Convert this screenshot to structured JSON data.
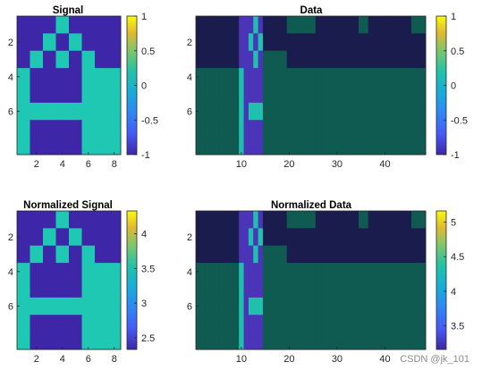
{
  "watermark": "CSDN @jk_101",
  "chart_data": [
    {
      "type": "heatmap",
      "title": "Signal",
      "xlim": [
        0.5,
        8.5
      ],
      "ylim": [
        0.5,
        8.5
      ],
      "xticks": [
        2,
        4,
        6,
        8
      ],
      "yticks": [
        2,
        4,
        6
      ],
      "clim": [
        -1,
        1
      ],
      "colorbar": {
        "ticks": [
          1,
          0.5,
          0,
          -0.5,
          -1
        ]
      },
      "rows": [
        "NNNPNNNN",
        "NNPNPNNN",
        "NPNPNPNN",
        "PNNNNPPP",
        "PNNNNPPP",
        "PPPPPPPP",
        "PNNNNPPP",
        "PNNNNPPP"
      ]
    },
    {
      "type": "heatmap",
      "title": "Data",
      "xlim": [
        0.5,
        48.5
      ],
      "ylim": [
        0.5,
        8.5
      ],
      "xticks": [
        10,
        20,
        30,
        40
      ],
      "yticks": [
        2,
        4,
        6
      ],
      "clim": [
        -1,
        1
      ],
      "colorbar": {
        "ticks": [
          1,
          0.5,
          0,
          -0.5,
          -1
        ]
      },
      "column_signal": [
        1,
        1,
        1,
        1,
        1,
        1,
        1,
        1,
        1,
        1,
        2,
        3,
        4,
        5,
        6,
        6,
        6,
        6,
        6,
        7,
        7,
        7,
        7,
        7,
        7,
        8,
        8,
        8,
        8,
        8,
        8,
        8,
        8,
        8,
        8,
        8,
        8,
        8,
        8,
        8,
        8,
        8,
        8,
        8,
        8,
        8,
        8,
        8
      ],
      "column_mode": [
        "d",
        "d",
        "d",
        "d",
        "d",
        "d",
        "d",
        "d",
        "d",
        "c",
        "b",
        "s",
        "s",
        "s",
        "d",
        "d",
        "d",
        "d",
        "d",
        "u",
        "u",
        "u",
        "u",
        "u",
        "u",
        "l",
        "l",
        "l",
        "l",
        "l",
        "l",
        "l",
        "l",
        "l",
        "u",
        "u",
        "l",
        "l",
        "l",
        "l",
        "l",
        "l",
        "l",
        "l",
        "l",
        "u",
        "u",
        "u"
      ]
    },
    {
      "type": "heatmap",
      "title": "Normalized Signal",
      "xlim": [
        0.5,
        8.5
      ],
      "ylim": [
        0.5,
        8.5
      ],
      "xticks": [
        2,
        4,
        6,
        8
      ],
      "yticks": [
        2,
        4,
        6
      ],
      "clim": [
        2.33,
        4.33
      ],
      "colorbar": {
        "ticks": [
          4,
          3.5,
          3,
          2.5
        ]
      },
      "rows_ref": 0
    },
    {
      "type": "heatmap",
      "title": "Normalized Data",
      "xlim": [
        0.5,
        48.5
      ],
      "ylim": [
        0.5,
        8.5
      ],
      "xticks": [
        10,
        20,
        30,
        40
      ],
      "yticks": [
        2,
        4,
        6
      ],
      "clim": [
        3.16,
        5.16
      ],
      "colorbar": {
        "ticks": [
          5,
          4.5,
          4,
          3.5
        ]
      },
      "rows_ref": 1
    }
  ],
  "colors": {
    "low": "#3e26a8",
    "high": "#1fc8b2",
    "data_low": "#1b1c4e",
    "data_mid": "#0f5a51",
    "data_bright": "#20bfae",
    "data_purple": "#4a34b8",
    "data_stripe": "#2f2f8c"
  }
}
